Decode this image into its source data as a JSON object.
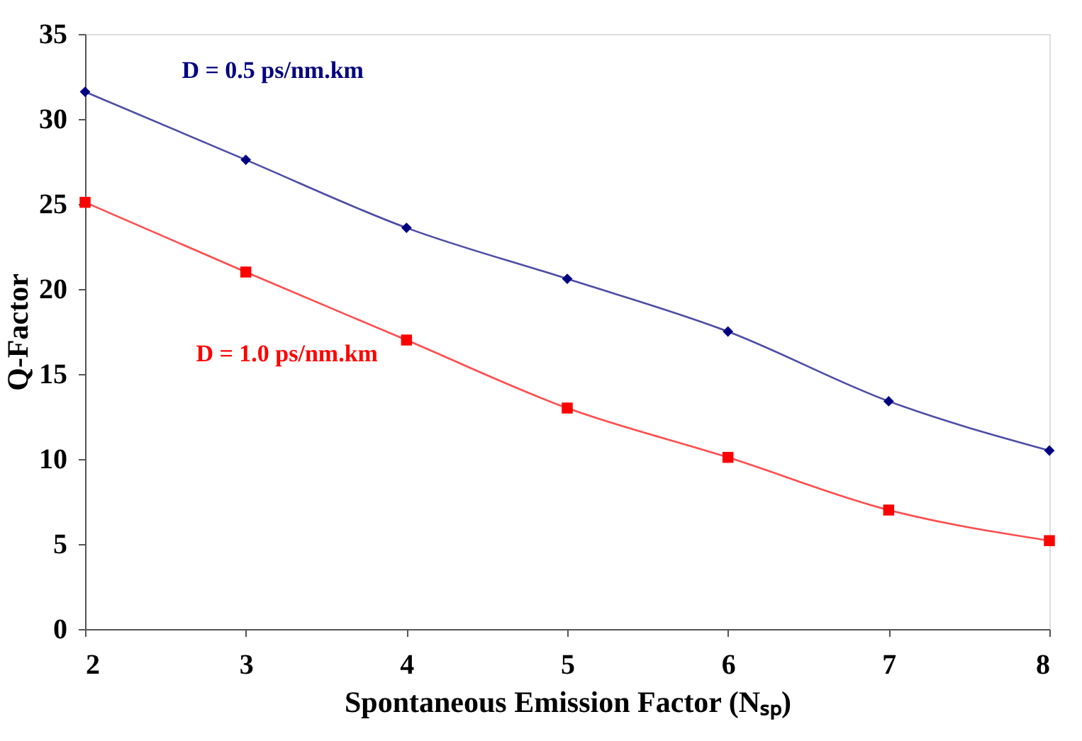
{
  "chart_data": {
    "type": "line",
    "xlabel": "Spontaneous Emission Factor (Nₛₚ)",
    "ylabel": "Q-Factor",
    "x": [
      2,
      3,
      4,
      5,
      6,
      7,
      8
    ],
    "series": [
      {
        "name": "D = 0.5 ps/nm.km",
        "color": "#000080",
        "marker": "diamond",
        "values": [
          31.6,
          27.6,
          23.6,
          20.6,
          17.5,
          13.4,
          10.5
        ]
      },
      {
        "name": "D = 1.0 ps/nm.km",
        "color": "#ff0000",
        "marker": "square",
        "values": [
          25.1,
          21.0,
          17.0,
          13.0,
          10.1,
          7.0,
          5.2
        ]
      }
    ],
    "xlim": [
      2,
      8
    ],
    "xticks": [
      2,
      3,
      4,
      5,
      6,
      7,
      8
    ],
    "ylim": [
      0,
      35
    ],
    "yticks": [
      0,
      5,
      10,
      15,
      20,
      25,
      30,
      35
    ],
    "grid": false,
    "line_style": "solid"
  }
}
